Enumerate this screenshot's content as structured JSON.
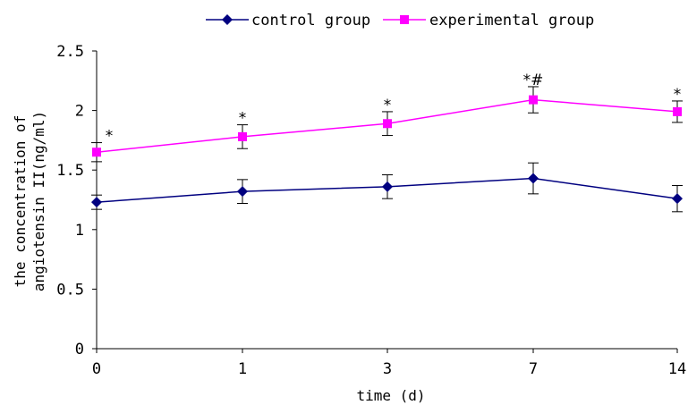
{
  "chart_data": {
    "type": "line",
    "categories": [
      "0",
      "1",
      "3",
      "7",
      "14"
    ],
    "xlabel": "time (d)",
    "ylabel_lines": [
      "the concentration of",
      "angiotensin II(ng/ml)"
    ],
    "ylim": [
      0,
      2.5
    ],
    "yticks": [
      "0",
      "0.5",
      "1",
      "1.5",
      "2",
      "2.5"
    ],
    "ytick_values": [
      0,
      0.5,
      1,
      1.5,
      2,
      2.5
    ],
    "legend_position": "top",
    "series": [
      {
        "name": "control group",
        "color": "#000080",
        "marker": "diamond",
        "values": [
          1.23,
          1.32,
          1.36,
          1.43,
          1.26
        ],
        "error": [
          0.06,
          0.1,
          0.1,
          0.13,
          0.11
        ]
      },
      {
        "name": "experimental group",
        "color": "#FF00FF",
        "marker": "square",
        "values": [
          1.65,
          1.78,
          1.89,
          2.09,
          1.99
        ],
        "error": [
          0.08,
          0.1,
          0.1,
          0.11,
          0.09
        ]
      }
    ],
    "annotations": [
      {
        "category_index": 0,
        "text": "*"
      },
      {
        "category_index": 1,
        "text": "*"
      },
      {
        "category_index": 2,
        "text": "*"
      },
      {
        "category_index": 3,
        "text": "*#"
      },
      {
        "category_index": 4,
        "text": "*"
      }
    ]
  }
}
